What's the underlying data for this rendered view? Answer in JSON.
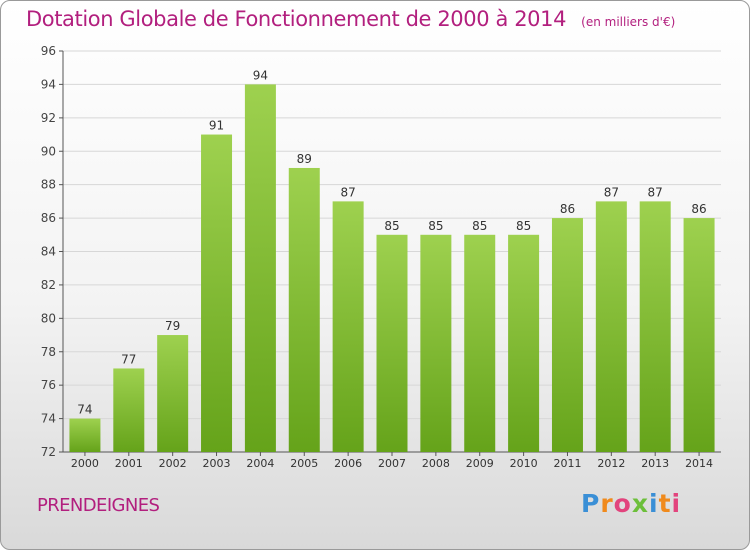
{
  "header": {
    "title": "Dotation Globale de Fonctionnement de 2000 à 2014",
    "unit": "(en milliers d'€)"
  },
  "footer": {
    "commune": "PRENDEIGNES",
    "logo_text": "Proxiti"
  },
  "colors": {
    "bar_light": "#9ed14f",
    "bar_dark": "#65a31a",
    "title": "#b21f7e",
    "grid": "#d7d7d7"
  },
  "chart_data": {
    "type": "bar",
    "title": "Dotation Globale de Fonctionnement de 2000 à 2014",
    "subtitle": "(en milliers d'€)",
    "xlabel": "",
    "ylabel": "",
    "categories": [
      "2000",
      "2001",
      "2002",
      "2003",
      "2004",
      "2005",
      "2006",
      "2007",
      "2008",
      "2009",
      "2010",
      "2011",
      "2012",
      "2013",
      "2014"
    ],
    "values": [
      74,
      77,
      79,
      91,
      94,
      89,
      87,
      85,
      85,
      85,
      85,
      86,
      87,
      87,
      86
    ],
    "ylim": [
      72,
      96
    ],
    "yticks": [
      72,
      74,
      76,
      78,
      80,
      82,
      84,
      86,
      88,
      90,
      92,
      94,
      96
    ],
    "grid": true,
    "data_labels": true,
    "legend": "none"
  }
}
